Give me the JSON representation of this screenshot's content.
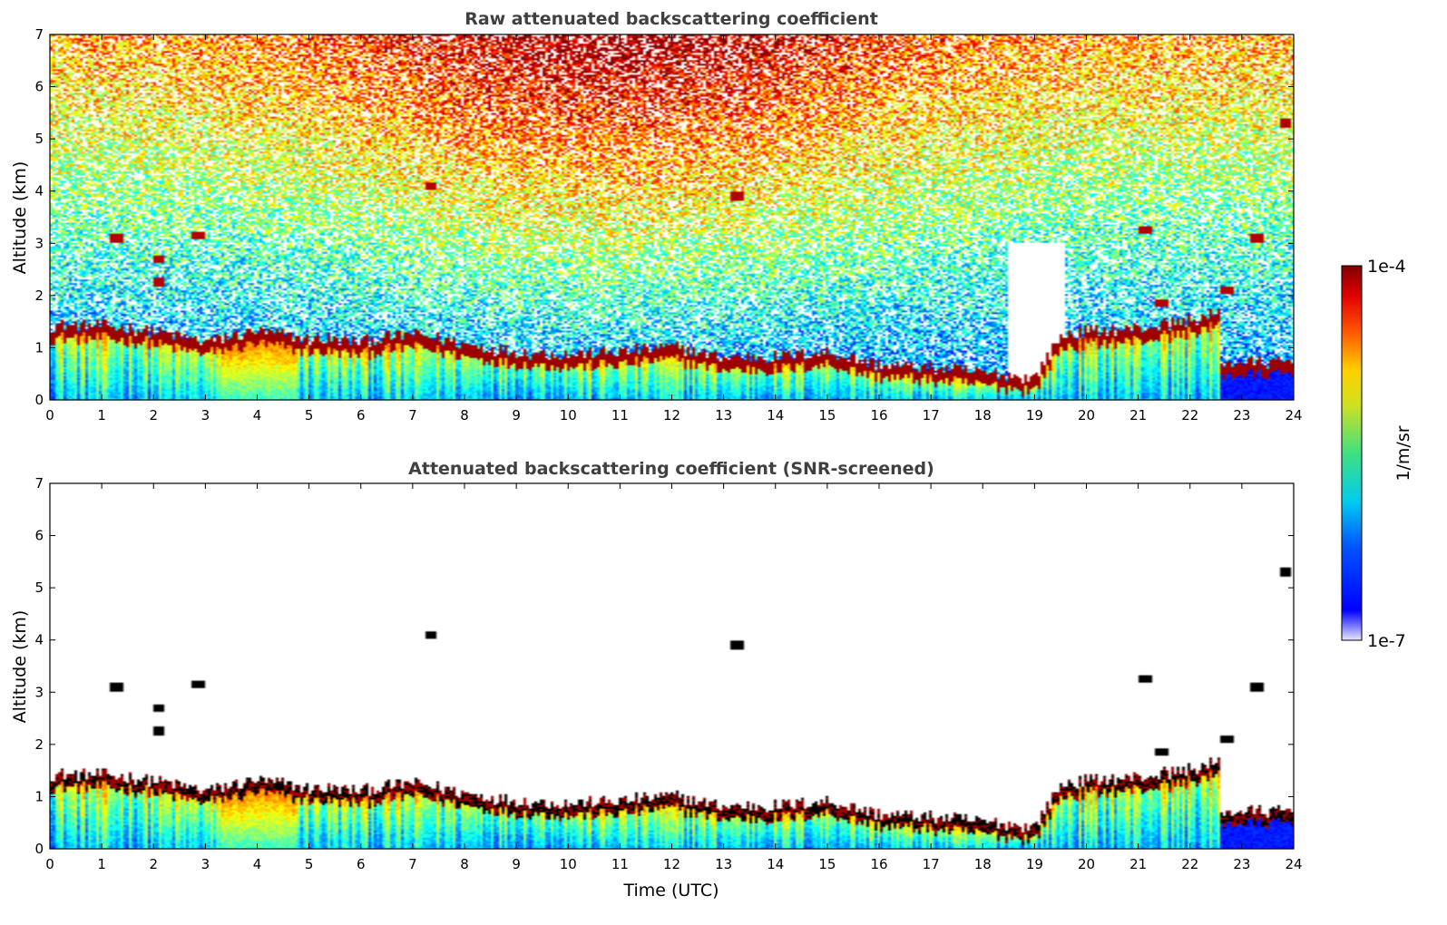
{
  "chart_data": [
    {
      "type": "heatmap",
      "title": "Raw attenuated backscattering coefficient",
      "xlabel": "",
      "ylabel": "Altitude (km)",
      "xlim": [
        0,
        24
      ],
      "ylim": [
        0,
        7
      ],
      "xticks": [
        "0",
        "1",
        "2",
        "3",
        "4",
        "5",
        "6",
        "7",
        "8",
        "9",
        "10",
        "11",
        "12",
        "13",
        "14",
        "15",
        "16",
        "17",
        "18",
        "19",
        "20",
        "21",
        "22",
        "23",
        "24"
      ],
      "yticks": [
        "0",
        "1",
        "2",
        "3",
        "4",
        "5",
        "6",
        "7"
      ],
      "colorscale": "jet",
      "screened": false,
      "boundary_layer_top_km": [
        [
          0,
          1.3
        ],
        [
          1,
          1.3
        ],
        [
          2,
          1.2
        ],
        [
          3,
          1.0
        ],
        [
          4,
          1.2
        ],
        [
          5,
          1.05
        ],
        [
          6,
          1.0
        ],
        [
          7,
          1.15
        ],
        [
          8,
          0.95
        ],
        [
          9,
          0.8
        ],
        [
          10,
          0.75
        ],
        [
          11,
          0.8
        ],
        [
          12,
          0.9
        ],
        [
          13,
          0.7
        ],
        [
          14,
          0.7
        ],
        [
          15,
          0.8
        ],
        [
          16,
          0.55
        ],
        [
          17,
          0.5
        ],
        [
          18,
          0.4
        ],
        [
          19,
          0.3
        ],
        [
          19.5,
          1.1
        ],
        [
          20,
          1.2
        ],
        [
          21,
          1.25
        ],
        [
          22,
          1.4
        ],
        [
          22.6,
          1.55
        ]
      ],
      "elevated_layers_km": [
        {
          "time": 1.3,
          "altitude": 3.1
        },
        {
          "time": 2.1,
          "altitude": 2.7
        },
        {
          "time": 2.1,
          "altitude": 2.25
        },
        {
          "time": 2.85,
          "altitude": 3.15
        },
        {
          "time": 7.35,
          "altitude": 4.1
        },
        {
          "time": 13.25,
          "altitude": 3.9
        },
        {
          "time": 21.15,
          "altitude": 3.25
        },
        {
          "time": 21.45,
          "altitude": 1.85
        },
        {
          "time": 22.7,
          "altitude": 2.1
        },
        {
          "time": 23.3,
          "altitude": 3.1
        },
        {
          "time": 23.85,
          "altitude": 5.3
        }
      ]
    },
    {
      "type": "heatmap",
      "title": "Attenuated backscattering coefficient (SNR-screened)",
      "xlabel": "Time (UTC)",
      "ylabel": "Altitude (km)",
      "xlim": [
        0,
        24
      ],
      "ylim": [
        0,
        7
      ],
      "xticks": [
        "0",
        "1",
        "2",
        "3",
        "4",
        "5",
        "6",
        "7",
        "8",
        "9",
        "10",
        "11",
        "12",
        "13",
        "14",
        "15",
        "16",
        "17",
        "18",
        "19",
        "20",
        "21",
        "22",
        "23",
        "24"
      ],
      "yticks": [
        "0",
        "1",
        "2",
        "3",
        "4",
        "5",
        "6",
        "7"
      ],
      "colorscale": "jet",
      "screened": true,
      "colorbar": {
        "label": "1/m/sr",
        "min_label": "1e-7",
        "max_label": "1e-4",
        "min": 1e-07,
        "max": 0.0001,
        "scale": "log"
      }
    }
  ]
}
